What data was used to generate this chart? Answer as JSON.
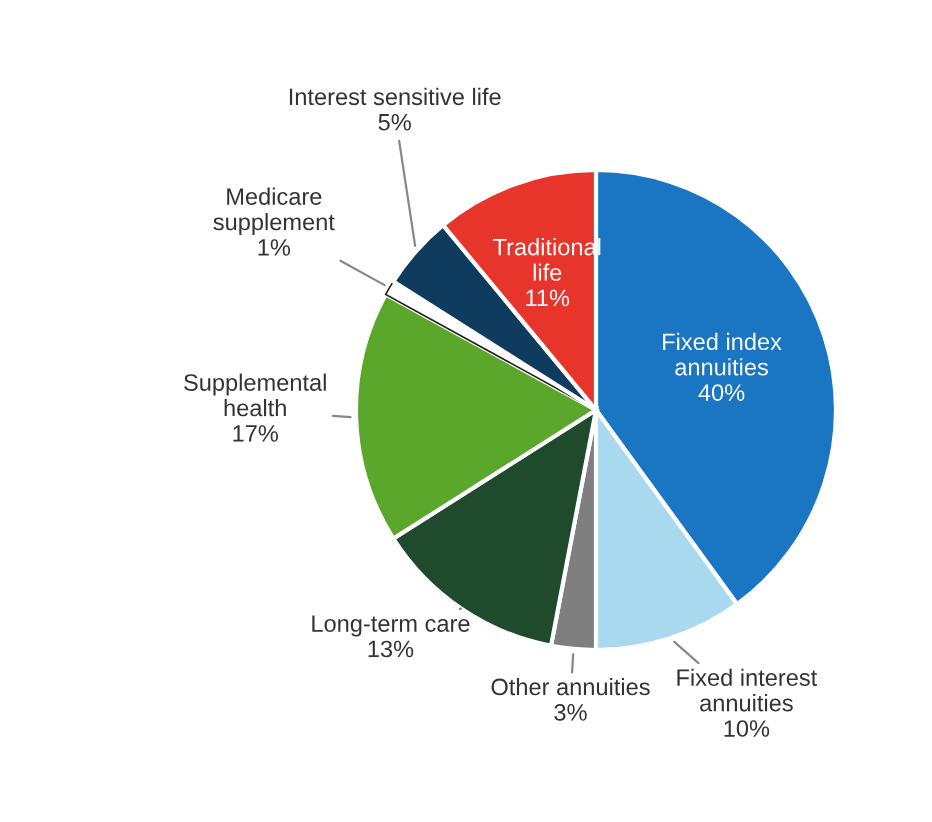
{
  "chart_data": {
    "type": "pie",
    "categories": [
      "Fixed index\nannuities",
      "Fixed interest\nannuities",
      "Other annuities",
      "Long-term care",
      "Supplemental\nhealth",
      "Medicare\nsupplement",
      "Interest sensitive life",
      "Traditional\nlife"
    ],
    "values": [
      40,
      10,
      3,
      13,
      17,
      1,
      5,
      11
    ],
    "value_labels": [
      "40%",
      "10%",
      "3%",
      "13%",
      "17%",
      "1%",
      "5%",
      "11%"
    ],
    "colors": [
      "#1a75c2",
      "#a9d9ef",
      "#7f7f7f",
      "#1f4a2c",
      "#5ba72b",
      "#ffffff",
      "#0e3b5e",
      "#e8352b"
    ]
  }
}
